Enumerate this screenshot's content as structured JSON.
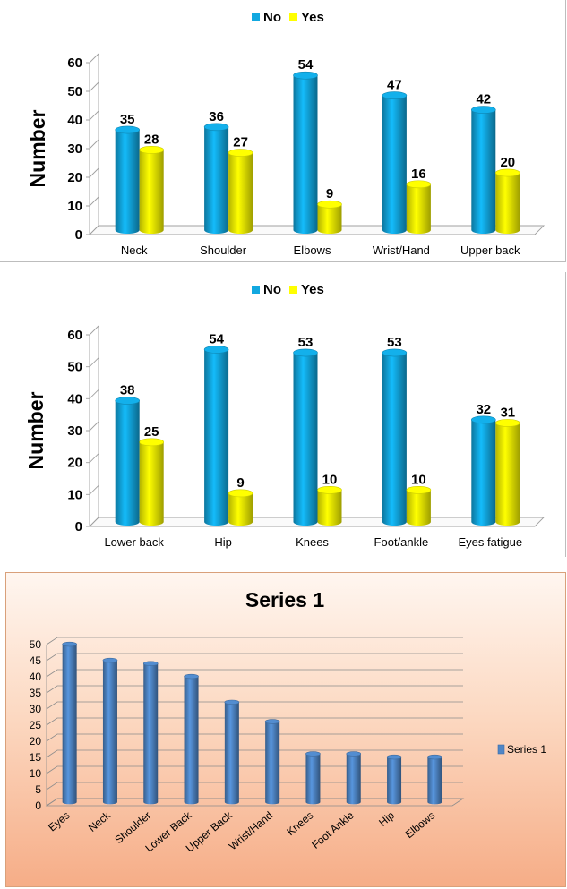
{
  "chart_data": [
    {
      "type": "bar",
      "categories": [
        "Neck",
        "Shoulder",
        "Elbows",
        "Wrist/Hand",
        "Upper back"
      ],
      "series": [
        {
          "name": "No",
          "values": [
            35,
            36,
            54,
            47,
            42
          ],
          "color": "#12a8e0"
        },
        {
          "name": "Yes",
          "values": [
            28,
            27,
            9,
            16,
            20
          ],
          "color": "#ffff00"
        }
      ],
      "ylabel": "Number",
      "ylim": [
        0,
        60
      ],
      "yticks": [
        0,
        10,
        20,
        30,
        40,
        50,
        60
      ],
      "legend": "top"
    },
    {
      "type": "bar",
      "categories": [
        "Lower back",
        "Hip",
        "Knees",
        "Foot/ankle",
        "Eyes fatigue"
      ],
      "series": [
        {
          "name": "No",
          "values": [
            38,
            54,
            53,
            53,
            32
          ],
          "color": "#12a8e0"
        },
        {
          "name": "Yes",
          "values": [
            25,
            9,
            10,
            10,
            31
          ],
          "color": "#ffff00"
        }
      ],
      "ylabel": "Number",
      "ylim": [
        0,
        60
      ],
      "yticks": [
        0,
        10,
        20,
        30,
        40,
        50,
        60
      ],
      "legend": "top"
    },
    {
      "type": "bar",
      "title": "Series 1",
      "categories": [
        "Eyes",
        "Neck",
        "Shoulder",
        "Lower Back",
        "Upper Back",
        "Wrist/Hand",
        "Knees",
        "Foot Ankle",
        "Hip",
        "Elbows"
      ],
      "series": [
        {
          "name": "Series 1",
          "values": [
            49,
            44,
            43,
            39,
            31,
            25,
            15,
            15,
            14,
            14
          ],
          "color": "#4f86c6"
        }
      ],
      "ylim": [
        0,
        50
      ],
      "yticks": [
        0,
        5,
        10,
        15,
        20,
        25,
        30,
        35,
        40,
        45,
        50
      ],
      "grid": true,
      "legend": "right"
    }
  ]
}
